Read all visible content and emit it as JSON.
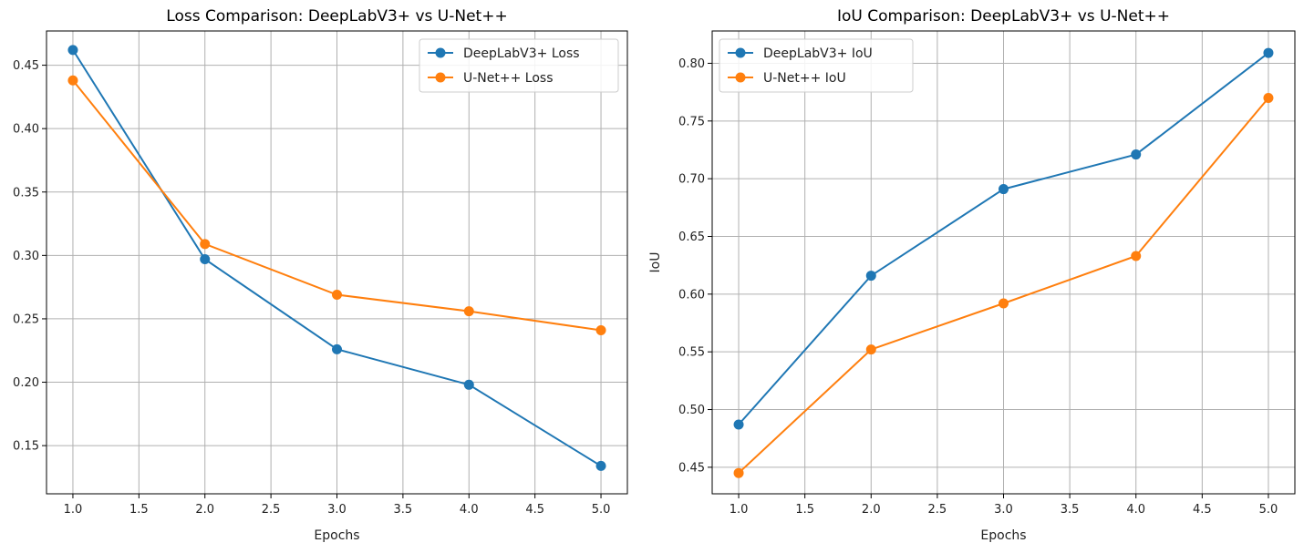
{
  "chart_data": [
    {
      "type": "line",
      "title": "Loss Comparison: DeepLabV3+ vs U-Net++",
      "xlabel": "Epochs",
      "ylabel": "",
      "x": [
        1,
        2,
        3,
        4,
        5
      ],
      "xlim": [
        0.8,
        5.2
      ],
      "ylim": [
        0.112,
        0.477
      ],
      "xticks": [
        1.0,
        1.5,
        2.0,
        2.5,
        3.0,
        3.5,
        4.0,
        4.5,
        5.0
      ],
      "xtick_labels": [
        "1.0",
        "1.5",
        "2.0",
        "2.5",
        "3.0",
        "3.5",
        "4.0",
        "4.5",
        "5.0"
      ],
      "yticks": [
        0.15,
        0.2,
        0.25,
        0.3,
        0.35,
        0.4,
        0.45
      ],
      "ytick_labels": [
        "0.15",
        "0.20",
        "0.25",
        "0.30",
        "0.35",
        "0.40",
        "0.45"
      ],
      "grid": true,
      "legend_position": "top-right",
      "series": [
        {
          "name": "DeepLabV3+ Loss",
          "values": [
            0.462,
            0.297,
            0.226,
            0.198,
            0.134
          ],
          "color": "#1f77b4"
        },
        {
          "name": "U-Net++ Loss",
          "values": [
            0.438,
            0.309,
            0.269,
            0.256,
            0.241
          ],
          "color": "#ff7f0e"
        }
      ]
    },
    {
      "type": "line",
      "title": "IoU Comparison: DeepLabV3+ vs U-Net++",
      "xlabel": "Epochs",
      "ylabel": "IoU",
      "x": [
        1,
        2,
        3,
        4,
        5
      ],
      "xlim": [
        0.8,
        5.2
      ],
      "ylim": [
        0.427,
        0.828
      ],
      "xticks": [
        1.0,
        1.5,
        2.0,
        2.5,
        3.0,
        3.5,
        4.0,
        4.5,
        5.0
      ],
      "xtick_labels": [
        "1.0",
        "1.5",
        "2.0",
        "2.5",
        "3.0",
        "3.5",
        "4.0",
        "4.5",
        "5.0"
      ],
      "yticks": [
        0.45,
        0.5,
        0.55,
        0.6,
        0.65,
        0.7,
        0.75,
        0.8
      ],
      "ytick_labels": [
        "0.45",
        "0.50",
        "0.55",
        "0.60",
        "0.65",
        "0.70",
        "0.75",
        "0.80"
      ],
      "grid": true,
      "legend_position": "top-left",
      "series": [
        {
          "name": "DeepLabV3+ IoU",
          "values": [
            0.487,
            0.616,
            0.691,
            0.721,
            0.809
          ],
          "color": "#1f77b4"
        },
        {
          "name": "U-Net++ IoU",
          "values": [
            0.445,
            0.552,
            0.592,
            0.633,
            0.77
          ],
          "color": "#ff7f0e"
        }
      ]
    }
  ]
}
